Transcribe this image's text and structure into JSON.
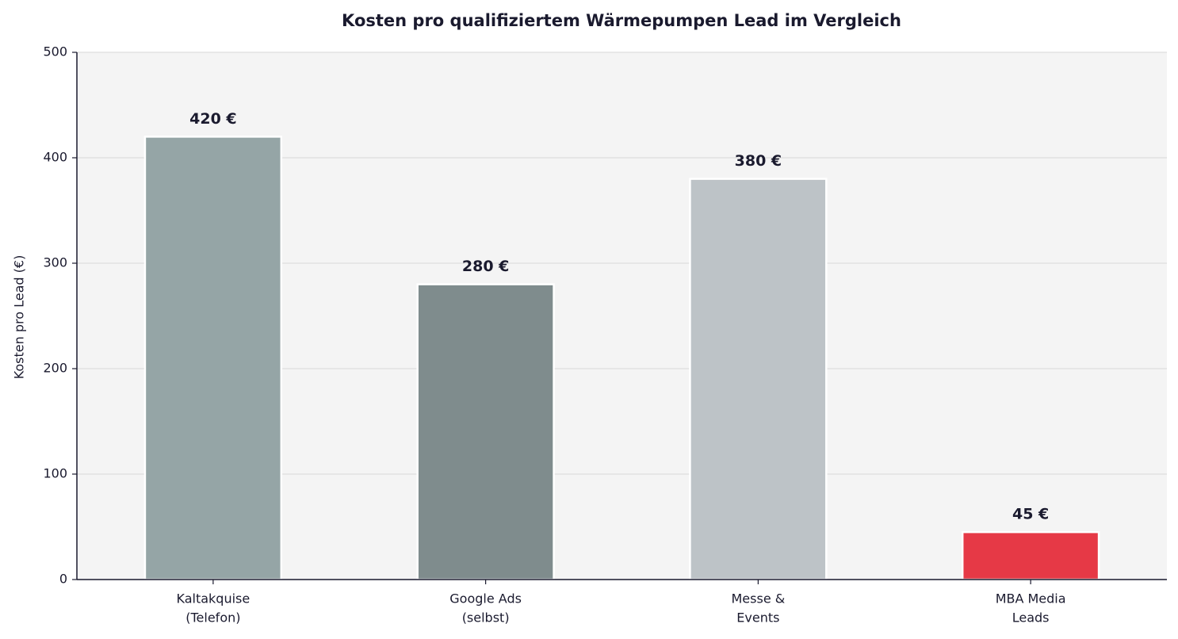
{
  "chart_data": {
    "type": "bar",
    "title": "Kosten pro qualifiziertem Wärmepumpen Lead im Vergleich",
    "y_label": "Kosten pro Lead (€)",
    "categories": [
      [
        "Kaltakquise",
        "(Telefon)"
      ],
      [
        "Google Ads",
        "(selbst)"
      ],
      [
        "Messe &",
        "Events"
      ],
      [
        "MBA Media",
        "Leads"
      ]
    ],
    "values": [
      420,
      280,
      380,
      45
    ],
    "value_labels": [
      "420 €",
      "280 €",
      "380 €",
      "45 €"
    ],
    "colors": [
      "#95a5a6",
      "#7f8c8d",
      "#bdc3c7",
      "#e63946"
    ],
    "ylim": [
      0,
      500
    ],
    "yticks": [
      0,
      100,
      200,
      300,
      400,
      500
    ],
    "grid": true
  }
}
